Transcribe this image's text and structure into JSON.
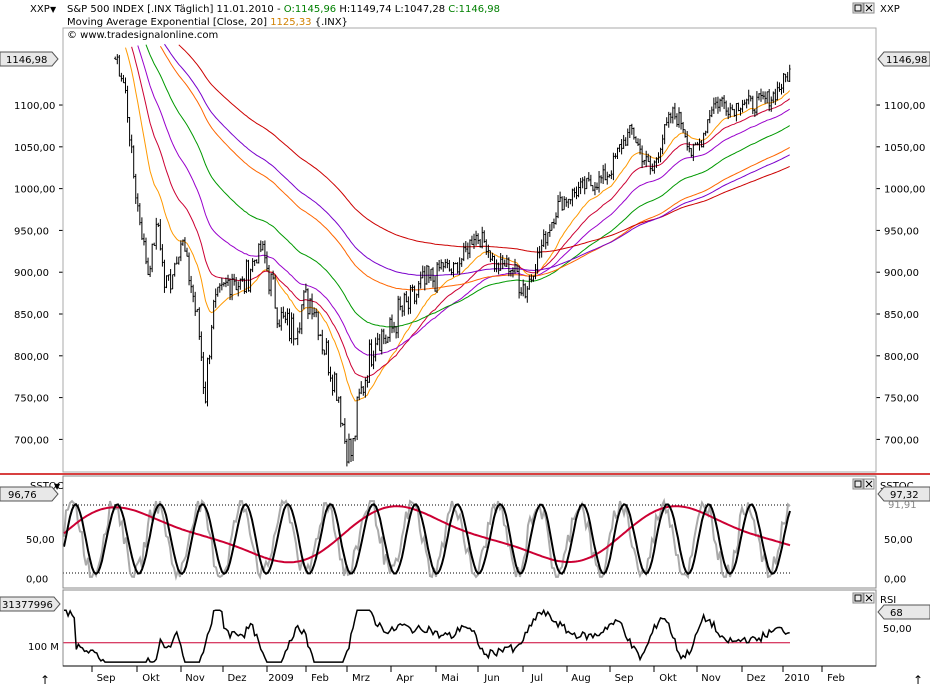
{
  "header": {
    "symbol": "XXP",
    "symbol_right": "XXP",
    "main_line_prefix": "S&P 500 INDEX [.INX  Täglich] 11.01.2010 - ",
    "open": "O:1145,96",
    "high": "H:1149,74",
    "low": "L:1047,28",
    "close": "C:1146,98",
    "ema_line": "Moving Average Exponential [Close, 20]",
    "ema_value": "1125,33",
    "ema_suffix": "{.INX}",
    "copyright": "© www.tradesignalonline.com"
  },
  "colors": {
    "ema_value": "#d08000",
    "ohlc": "#008000",
    "frame_red": "#cc0000",
    "ema20": "#ff9900",
    "ema50": "#cc0033",
    "ema100": "#9900cc",
    "ema200_green": "#009900",
    "ema200_orange": "#ff6600",
    "ema_long_red": "#cc0000",
    "ema_long_purple": "#7a00cc"
  },
  "main_panel": {
    "last_price_left": "1146,98",
    "last_price_right": "1146,98",
    "y_ticks": [
      "1100,00",
      "1050,00",
      "1000,00",
      "950,00",
      "900,00",
      "850,00",
      "800,00",
      "750,00",
      "700,00"
    ],
    "y_values": [
      1100,
      1050,
      1000,
      950,
      900,
      850,
      800,
      750,
      700
    ],
    "ylim": [
      661,
      1173
    ]
  },
  "sstoc_panel": {
    "label": "SSTOC",
    "label_right": "SSTOC",
    "value_left": "96,76",
    "value_right": "97,32",
    "y_ticks": [
      "50,00",
      "0,00"
    ],
    "y_ticks_right": [
      "50,00",
      "0,00"
    ],
    "overbought_label": "91,91",
    "ylim": [
      -12,
      112
    ]
  },
  "rsi_panel": {
    "label": "RSI",
    "value_left": "31377996",
    "value_right": "68",
    "left_tick": "100 M",
    "right_tick": "50,00"
  },
  "x_axis": {
    "labels": [
      "Sep",
      "Okt",
      "Nov",
      "Dez",
      "2009",
      "Feb",
      "Mrz",
      "Apr",
      "Mai",
      "Jun",
      "Jul",
      "Aug",
      "Sep",
      "Okt",
      "Nov",
      "Dez",
      "2010",
      "Feb"
    ]
  },
  "chart_data": {
    "type": "line",
    "title": "S&P 500 INDEX [.INX  Täglich] 11.01.2010",
    "x": [
      "2008-09",
      "2008-10",
      "2008-11",
      "2008-12",
      "2009-01",
      "2009-02",
      "2009-03",
      "2009-04",
      "2009-05",
      "2009-06",
      "2009-07",
      "2009-08",
      "2009-09",
      "2009-10",
      "2009-11",
      "2009-12",
      "2010-01"
    ],
    "series": [
      {
        "name": "S&P 500 INDEX",
        "values": [
          1230,
          960,
          880,
          875,
          870,
          780,
          720,
          850,
          900,
          920,
          900,
          1000,
          1040,
          1060,
          1090,
          1110,
          1147
        ]
      },
      {
        "name": "Moving Average Exponential [Close, 20]",
        "values": [
          1200,
          1000,
          900,
          880,
          880,
          820,
          770,
          820,
          880,
          910,
          910,
          980,
          1030,
          1060,
          1085,
          1105,
          1125
        ]
      }
    ],
    "ylim": [
      661,
      1173
    ]
  }
}
